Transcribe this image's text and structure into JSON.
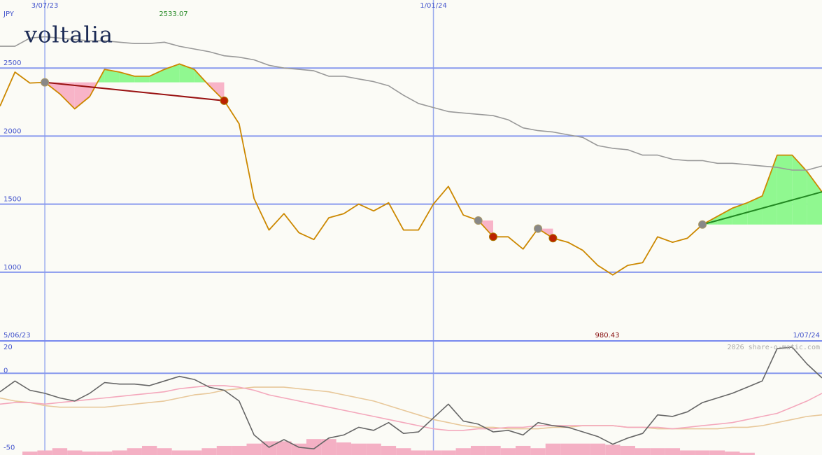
{
  "logo": "voltalia",
  "chart_data": [
    {
      "type": "line",
      "currency": "JPY",
      "xlim": [
        0,
        55
      ],
      "xticks": [
        {
          "value": 3,
          "label": "3/07/23"
        },
        {
          "value": 29,
          "label": "1/01/24"
        }
      ],
      "start_label": "5/06/23",
      "end_label": "1/07/24",
      "high_label": "2533.07",
      "low_label": "980.43",
      "ylim": [
        495,
        3000
      ],
      "yticks": [
        1000,
        1500,
        2000,
        2500
      ],
      "grid": true,
      "series": [
        {
          "name": "price",
          "color": "#cc8800",
          "values": [
            2220,
            2470,
            2390,
            2395,
            2310,
            2200,
            2290,
            2490,
            2470,
            2440,
            2440,
            2490,
            2530,
            2490,
            2370,
            2260,
            2090,
            1540,
            1310,
            1430,
            1290,
            1240,
            1400,
            1430,
            1500,
            1450,
            1510,
            1310,
            1310,
            1500,
            1630,
            1420,
            1380,
            1260,
            1260,
            1170,
            1320,
            1250,
            1220,
            1160,
            1050,
            980,
            1050,
            1070,
            1260,
            1220,
            1250,
            1350,
            1410,
            1470,
            1510,
            1560,
            1860,
            1860,
            1740,
            1590
          ]
        },
        {
          "name": "moving average",
          "color": "#999999",
          "values": [
            2660,
            2660,
            2720,
            2730,
            2720,
            2710,
            2700,
            2700,
            2690,
            2680,
            2680,
            2690,
            2660,
            2640,
            2620,
            2590,
            2580,
            2560,
            2520,
            2500,
            2490,
            2480,
            2440,
            2440,
            2420,
            2400,
            2370,
            2300,
            2240,
            2210,
            2180,
            2170,
            2160,
            2150,
            2120,
            2060,
            2040,
            2030,
            2010,
            1990,
            1930,
            1910,
            1900,
            1860,
            1860,
            1830,
            1820,
            1820,
            1800,
            1800,
            1790,
            1780,
            1770,
            1750,
            1750,
            1780
          ]
        }
      ],
      "trades": [
        {
          "entry": 3,
          "exit": 15,
          "closed": true,
          "color": "#991111"
        },
        {
          "entry": 32,
          "exit": 33,
          "closed": true
        },
        {
          "entry": 36,
          "exit": 37,
          "closed": true
        },
        {
          "entry": 47,
          "exit": 55,
          "closed": false,
          "color": "#228822"
        }
      ]
    },
    {
      "type": "line",
      "watermark": "2026 share-o-matic.com",
      "xlim": [
        0,
        55
      ],
      "xticks": [
        3,
        29
      ],
      "ylim": [
        -53,
        21
      ],
      "yticks": [
        -50,
        0,
        20
      ],
      "grid_at": [
        0
      ],
      "y2lim": [
        0,
        100
      ],
      "series": [
        {
          "name": "volume",
          "kind": "bar",
          "axis": "y2",
          "color": "#f4b0c4",
          "values": [
            0,
            0,
            3,
            4,
            6,
            4,
            3,
            3,
            4,
            6,
            8,
            6,
            4,
            4,
            6,
            8,
            8,
            10,
            12,
            12,
            10,
            14,
            14,
            11,
            10,
            10,
            8,
            6,
            4,
            4,
            4,
            6,
            8,
            8,
            6,
            8,
            6,
            10,
            10,
            10,
            10,
            9,
            8,
            6,
            6,
            6,
            4,
            4,
            4,
            3,
            2,
            0,
            0,
            0,
            0,
            0
          ]
        },
        {
          "name": "signal",
          "color": "#e8c89a",
          "values": [
            -16,
            -18,
            -19,
            -21,
            -22,
            -22,
            -22,
            -22,
            -21,
            -20,
            -19,
            -18,
            -16,
            -14,
            -13,
            -11,
            -10,
            -9,
            -9,
            -9,
            -10,
            -11,
            -12,
            -14,
            -16,
            -18,
            -21,
            -24,
            -27,
            -30,
            -32,
            -34,
            -35,
            -35,
            -36,
            -36,
            -36,
            -35,
            -35,
            -34,
            -34,
            -34,
            -35,
            -35,
            -36,
            -36,
            -36,
            -36,
            -36,
            -35,
            -35,
            -34,
            -32,
            -30,
            -28,
            -27
          ]
        },
        {
          "name": "average",
          "color": "#f4a8bc",
          "values": [
            -20,
            -19,
            -19,
            -20,
            -19,
            -18,
            -17,
            -16,
            -15,
            -14,
            -13,
            -12,
            -10,
            -9,
            -8,
            -8,
            -9,
            -11,
            -14,
            -16,
            -18,
            -20,
            -22,
            -24,
            -26,
            -28,
            -30,
            -32,
            -34,
            -36,
            -37,
            -37,
            -36,
            -36,
            -35,
            -35,
            -34,
            -34,
            -34,
            -34,
            -34,
            -34,
            -35,
            -35,
            -35,
            -36,
            -35,
            -34,
            -33,
            -32,
            -30,
            -28,
            -26,
            -22,
            -18,
            -13
          ]
        },
        {
          "name": "oscillator",
          "color": "#666666",
          "values": [
            -12,
            -5,
            -11,
            -13,
            -16,
            -18,
            -13,
            -6,
            -7,
            -7,
            -8,
            -5,
            -2,
            -4,
            -9,
            -11,
            -18,
            -40,
            -48,
            -43,
            -48,
            -49,
            -42,
            -40,
            -35,
            -37,
            -32,
            -39,
            -38,
            -29,
            -20,
            -31,
            -33,
            -38,
            -37,
            -40,
            -32,
            -34,
            -35,
            -38,
            -41,
            -46,
            -42,
            -39,
            -27,
            -28,
            -25,
            -19,
            -16,
            -13,
            -9,
            -5,
            16,
            17,
            6,
            -3
          ]
        }
      ]
    }
  ]
}
